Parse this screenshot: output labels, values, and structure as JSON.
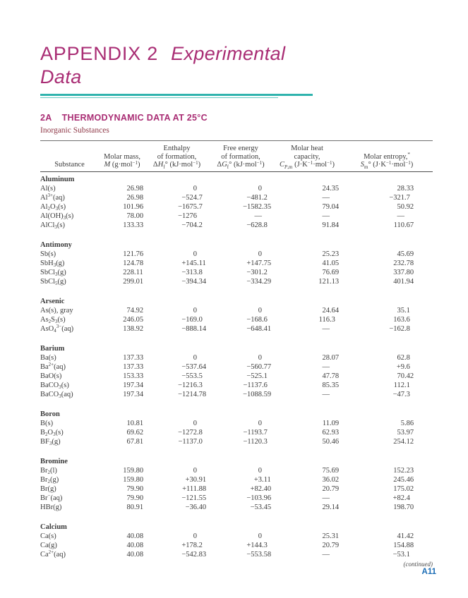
{
  "colors": {
    "title_magenta": "#a92d74",
    "rule_teal": "#2fb3ad",
    "subtitle_maroon": "#8e3746",
    "body_text": "#3b3b3b",
    "page_number_blue": "#1a6cb5"
  },
  "header": {
    "title_regular": "APPENDIX 2",
    "title_italic_line1": "Experimental",
    "title_italic_line2": "Data",
    "section_number": "2A",
    "section_title": "THERMODYNAMIC DATA AT 25°C",
    "subtitle": "Inorganic Substances"
  },
  "table": {
    "columns": [
      {
        "id": "substance",
        "lines": [
          "Substance"
        ]
      },
      {
        "id": "molar-mass",
        "lines": [
          "Molar mass,",
          "*M* (g·mol^{−1})"
        ]
      },
      {
        "id": "enthalpy",
        "lines": [
          "Enthalpy",
          "of formation,",
          "Δ*H*_{f}° (kJ·mol^{−1})"
        ]
      },
      {
        "id": "free-energy",
        "lines": [
          "Free energy",
          "of formation,",
          "Δ*G*_{f}° (kJ·mol^{−1})"
        ]
      },
      {
        "id": "heat-capacity",
        "lines": [
          "Molar heat",
          "capacity,",
          "*C*_{*P*,m} (J·K^{−1}·mol^{−1})"
        ]
      },
      {
        "id": "entropy",
        "lines": [
          "Molar entropy,^{*}",
          "*S*_{m}° (J·K^{−1}·mol^{−1})"
        ]
      }
    ],
    "sections": [
      {
        "name": "Aluminum",
        "rows": [
          [
            "Al(s)",
            "26.98",
            "0",
            "0",
            "24.35",
            "28.33"
          ],
          [
            "Al^{3+}(aq)",
            "26.98",
            "−524.7",
            "−481.2",
            "—",
            "−321.7"
          ],
          [
            "Al_{2}O_{3}(s)",
            "101.96",
            "−1675.7",
            "−1582.35",
            "79.04",
            "50.92"
          ],
          [
            "Al(OH)_{3}(s)",
            "78.00",
            "−1276",
            "—",
            "—",
            "—"
          ],
          [
            "AlCl_{3}(s)",
            "133.33",
            "−704.2",
            "−628.8",
            "91.84",
            "110.67"
          ]
        ]
      },
      {
        "name": "Antimony",
        "rows": [
          [
            "Sb(s)",
            "121.76",
            "0",
            "0",
            "25.23",
            "45.69"
          ],
          [
            "SbH_{3}(g)",
            "124.78",
            "+145.11",
            "+147.75",
            "41.05",
            "232.78"
          ],
          [
            "SbCl_{3}(g)",
            "228.11",
            "−313.8",
            "−301.2",
            "76.69",
            "337.80"
          ],
          [
            "SbCl_{5}(g)",
            "299.01",
            "−394.34",
            "−334.29",
            "121.13",
            "401.94"
          ]
        ]
      },
      {
        "name": "Arsenic",
        "rows": [
          [
            "As(s), gray",
            "74.92",
            "0",
            "0",
            "24.64",
            "35.1"
          ],
          [
            "As_{2}S_{3}(s)",
            "246.05",
            "−169.0",
            "−168.6",
            "116.3",
            "163.6"
          ],
          [
            "AsO_{4}^{3−}(aq)",
            "138.92",
            "−888.14",
            "−648.41",
            "—",
            "−162.8"
          ]
        ]
      },
      {
        "name": "Barium",
        "rows": [
          [
            "Ba(s)",
            "137.33",
            "0",
            "0",
            "28.07",
            "62.8"
          ],
          [
            "Ba^{2+}(aq)",
            "137.33",
            "−537.64",
            "−560.77",
            "—",
            "+9.6"
          ],
          [
            "BaO(s)",
            "153.33",
            "−553.5",
            "−525.1",
            "47.78",
            "70.42"
          ],
          [
            "BaCO_{3}(s)",
            "197.34",
            "−1216.3",
            "−1137.6",
            "85.35",
            "112.1"
          ],
          [
            "BaCO_{3}(aq)",
            "197.34",
            "−1214.78",
            "−1088.59",
            "—",
            "−47.3"
          ]
        ]
      },
      {
        "name": "Boron",
        "rows": [
          [
            "B(s)",
            "10.81",
            "0",
            "0",
            "11.09",
            "5.86"
          ],
          [
            "B_{2}O_{3}(s)",
            "69.62",
            "−1272.8",
            "−1193.7",
            "62.93",
            "53.97"
          ],
          [
            "BF_{3}(g)",
            "67.81",
            "−1137.0",
            "−1120.3",
            "50.46",
            "254.12"
          ]
        ]
      },
      {
        "name": "Bromine",
        "rows": [
          [
            "Br_{2}(l)",
            "159.80",
            "0",
            "0",
            "75.69",
            "152.23"
          ],
          [
            "Br_{2}(g)",
            "159.80",
            "+30.91",
            "+3.11",
            "36.02",
            "245.46"
          ],
          [
            "Br(g)",
            "79.90",
            "+111.88",
            "+82.40",
            "20.79",
            "175.02"
          ],
          [
            "Br^{−}(aq)",
            "79.90",
            "−121.55",
            "−103.96",
            "—",
            "+82.4"
          ],
          [
            "HBr(g)",
            "80.91",
            "−36.40",
            "−53.45",
            "29.14",
            "198.70"
          ]
        ]
      },
      {
        "name": "Calcium",
        "rows": [
          [
            "Ca(s)",
            "40.08",
            "0",
            "0",
            "25.31",
            "41.42"
          ],
          [
            "Ca(g)",
            "40.08",
            "+178.2",
            "+144.3",
            "20.79",
            "154.88"
          ],
          [
            "Ca^{2+}(aq)",
            "40.08",
            "−542.83",
            "−553.58",
            "—",
            "−53.1"
          ]
        ]
      }
    ]
  },
  "footer": {
    "continued": "(continued)",
    "page_number": "A11"
  }
}
